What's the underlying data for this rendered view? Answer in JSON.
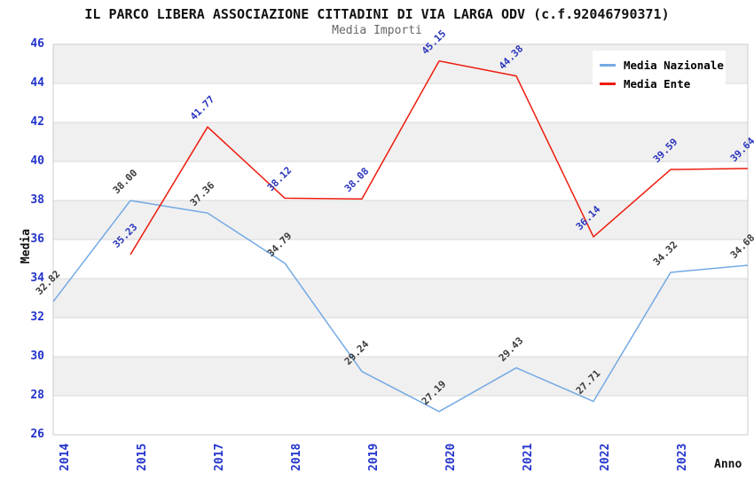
{
  "header": {
    "title": "IL PARCO LIBERA ASSOCIAZIONE CITTADINI DI VIA LARGA ODV (c.f.92046790371)",
    "subtitle": "Media Importi"
  },
  "axes": {
    "y_label": "Media",
    "x_label": "Anno"
  },
  "legend": {
    "items": [
      {
        "label": "Media Nazionale",
        "color": "#74a9e4"
      },
      {
        "label": "Media Ente",
        "color": "#ee1c0e"
      }
    ]
  },
  "chart_data": {
    "type": "line",
    "title": "IL PARCO LIBERA ASSOCIAZIONE CITTADINI DI VIA LARGA ODV (c.f.92046790371)",
    "subtitle": "Media Importi",
    "xlabel": "Anno",
    "ylabel": "Media",
    "categories": [
      "2014",
      "2015",
      "2017",
      "2018",
      "2019",
      "2020",
      "2021",
      "2022",
      "2023",
      "2024"
    ],
    "series": [
      {
        "name": "Media Nazionale",
        "color": "#74a9e4",
        "label_color": "#3a3a3a",
        "values": [
          32.82,
          38.0,
          37.36,
          34.79,
          29.24,
          27.19,
          29.43,
          27.71,
          34.32,
          34.68
        ]
      },
      {
        "name": "Media Ente",
        "color": "#ee1c0e",
        "label_color": "#2a35bd",
        "values": [
          null,
          35.23,
          41.77,
          38.12,
          38.08,
          45.15,
          44.38,
          36.14,
          39.59,
          39.64
        ]
      }
    ],
    "ylim": [
      26,
      46
    ],
    "ytick_step": 2,
    "yticks": [
      26,
      28,
      30,
      32,
      34,
      36,
      38,
      40,
      42,
      44,
      46
    ],
    "grid": true,
    "band_fill": "alternating",
    "legend_position": "top-right"
  },
  "colors": {
    "band_gray": "#f0f0f0",
    "gridline": "#d9d9d9",
    "plot_border": "#cccccc",
    "tick_label": "#2333cc",
    "title": "#111111",
    "subtitle": "#666666",
    "background": "#ffffff"
  }
}
